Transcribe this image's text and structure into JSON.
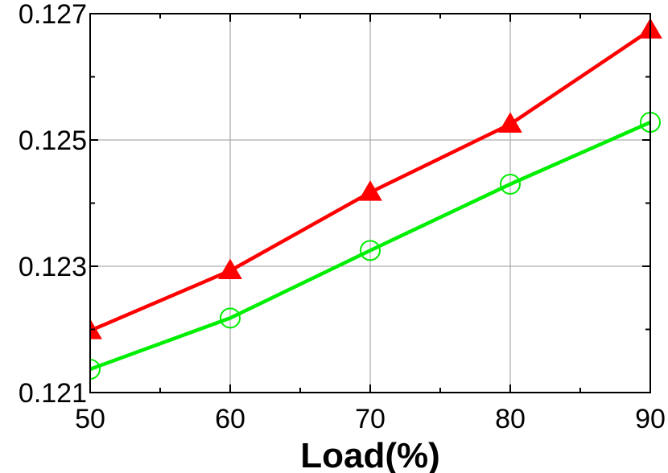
{
  "chart_data": {
    "type": "line",
    "title": "",
    "xlabel": "Load(%)",
    "ylabel": "",
    "x": [
      50,
      60,
      70,
      80,
      90
    ],
    "xlim": [
      50,
      90
    ],
    "ylim": [
      0.121,
      0.127
    ],
    "x_ticks": [
      "50",
      "60",
      "70",
      "80",
      "90"
    ],
    "y_ticks": [
      "0.121",
      "0.123",
      "0.125",
      "0.127"
    ],
    "grid": true,
    "series": [
      {
        "values": [
          0.12198,
          0.12293,
          0.12417,
          0.12525,
          0.12674
        ],
        "color": "#ff0000",
        "marker": "filled-triangle"
      },
      {
        "values": [
          0.12137,
          0.12218,
          0.12325,
          0.1243,
          0.12528
        ],
        "color": "#00ee00",
        "marker": "open-circle"
      }
    ]
  }
}
